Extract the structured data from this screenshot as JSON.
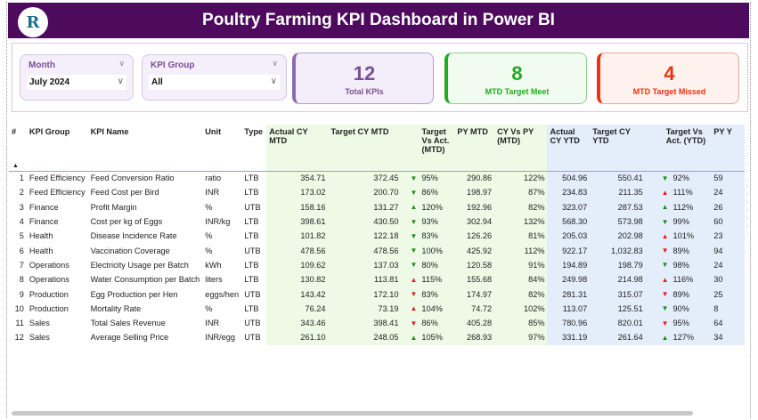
{
  "header": {
    "title": "Poultry Farming KPI Dashboard in Power BI",
    "logo_text": "R"
  },
  "filters": {
    "month": {
      "label": "Month",
      "value": "July 2024"
    },
    "kpi_group": {
      "label": "KPI Group",
      "value": "All"
    }
  },
  "cards": [
    {
      "value": "12",
      "label": "Total KPIs",
      "color": "#7a4f96"
    },
    {
      "value": "8",
      "label": "MTD Target Meet",
      "color": "#22aa22"
    },
    {
      "value": "4",
      "label": "MTD Target Missed",
      "color": "#ee3311"
    }
  ],
  "colors": {
    "header": "#4e0a5c",
    "good": "#1a8c1a",
    "bad": "#e31c1c"
  },
  "table": {
    "columns": [
      "#",
      "KPI Group",
      "KPI Name",
      "Unit",
      "Type",
      "Actual CY MTD",
      "Target CY MTD",
      "Target Vs Act. (MTD)",
      "PY MTD",
      "CY Vs PY (MTD)",
      "Actual CY YTD",
      "Target CY YTD",
      "Target Vs Act. (YTD)",
      "PY Y"
    ],
    "rows": [
      [
        "1",
        "Feed Efficiency",
        "Feed Conversion Ratio",
        "ratio",
        "LTB",
        "354.71",
        "372.45",
        "down-green",
        "95%",
        "290.86",
        "122%",
        "504.96",
        "550.41",
        "down-green",
        "92%",
        "59"
      ],
      [
        "2",
        "Feed Efficiency",
        "Feed Cost per Bird",
        "INR",
        "LTB",
        "173.02",
        "200.70",
        "down-green",
        "86%",
        "198.97",
        "87%",
        "234.83",
        "211.35",
        "up-red",
        "111%",
        "24"
      ],
      [
        "3",
        "Finance",
        "Profit Margin",
        "%",
        "UTB",
        "158.16",
        "131.27",
        "up-green",
        "120%",
        "192.96",
        "82%",
        "323.07",
        "287.53",
        "up-green",
        "112%",
        "26"
      ],
      [
        "4",
        "Finance",
        "Cost per kg of Eggs",
        "INR/kg",
        "LTB",
        "398.61",
        "430.50",
        "down-green",
        "93%",
        "302.94",
        "132%",
        "568.30",
        "573.98",
        "down-green",
        "99%",
        "60"
      ],
      [
        "5",
        "Health",
        "Disease Incidence Rate",
        "%",
        "LTB",
        "101.82",
        "122.18",
        "down-green",
        "83%",
        "126.26",
        "81%",
        "205.03",
        "202.98",
        "up-red",
        "101%",
        "23"
      ],
      [
        "6",
        "Health",
        "Vaccination Coverage",
        "%",
        "UTB",
        "478.56",
        "478.56",
        "down-green",
        "100%",
        "425.92",
        "112%",
        "922.17",
        "1,032.83",
        "down-red",
        "89%",
        "94"
      ],
      [
        "7",
        "Operations",
        "Electricity Usage per Batch",
        "kWh",
        "LTB",
        "109.62",
        "137.03",
        "down-green",
        "80%",
        "120.58",
        "91%",
        "194.89",
        "198.79",
        "down-green",
        "98%",
        "24"
      ],
      [
        "8",
        "Operations",
        "Water Consumption per Batch",
        "liters",
        "LTB",
        "130.82",
        "113.81",
        "up-red",
        "115%",
        "155.68",
        "84%",
        "249.98",
        "214.98",
        "up-red",
        "116%",
        "30"
      ],
      [
        "9",
        "Production",
        "Egg Production per Hen",
        "eggs/hen",
        "UTB",
        "143.42",
        "172.10",
        "down-red",
        "83%",
        "174.97",
        "82%",
        "281.31",
        "315.07",
        "down-red",
        "89%",
        "25"
      ],
      [
        "10",
        "Production",
        "Mortality Rate",
        "%",
        "LTB",
        "76.24",
        "73.19",
        "up-red",
        "104%",
        "74.72",
        "102%",
        "113.07",
        "125.51",
        "down-green",
        "90%",
        "8"
      ],
      [
        "11",
        "Sales",
        "Total Sales Revenue",
        "INR",
        "UTB",
        "343.46",
        "398.41",
        "down-red",
        "86%",
        "405.28",
        "85%",
        "780.96",
        "820.01",
        "down-red",
        "95%",
        "64"
      ],
      [
        "12",
        "Sales",
        "Average Selling Price",
        "INR/egg",
        "UTB",
        "261.10",
        "248.05",
        "up-green",
        "105%",
        "268.93",
        "97%",
        "331.19",
        "261.64",
        "up-green",
        "127%",
        "34"
      ]
    ]
  }
}
